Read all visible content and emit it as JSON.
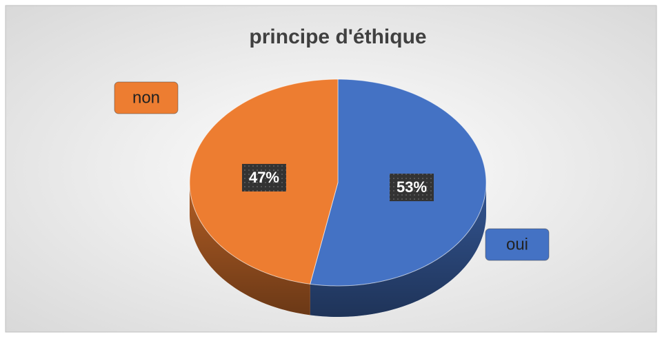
{
  "chart_data": {
    "type": "pie",
    "title": "principe d'éthique",
    "categories": [
      "oui",
      "non"
    ],
    "values": [
      53,
      47
    ],
    "value_labels": [
      "53%",
      "47%"
    ],
    "colors": [
      "#4472c4",
      "#ed7d31"
    ]
  }
}
